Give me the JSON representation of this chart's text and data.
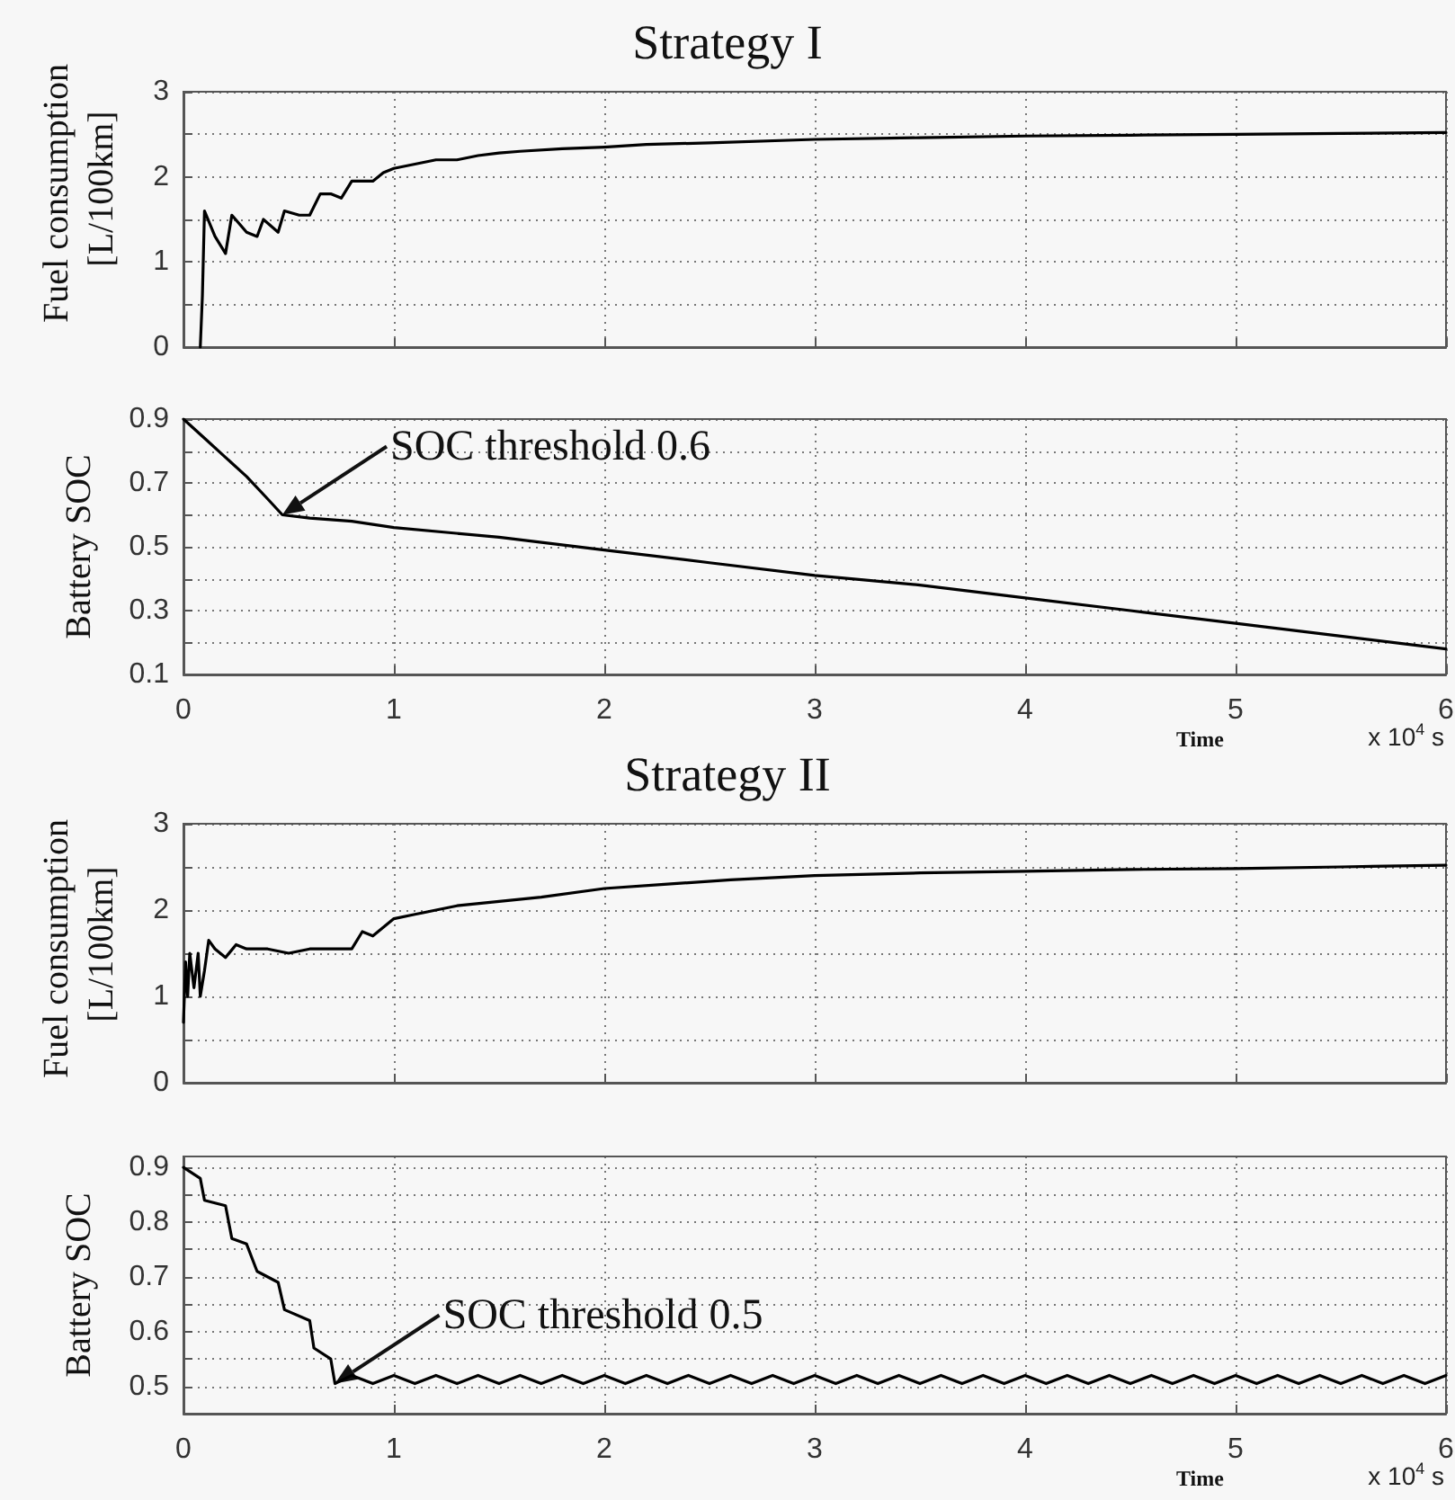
{
  "chart_data": [
    {
      "type": "line",
      "title": "Strategy I",
      "ylabel": "Fuel consumption [L/100km]",
      "xlim": [
        0,
        6
      ],
      "xticks": [
        0,
        1,
        2,
        3,
        4,
        5,
        6
      ],
      "ylim": [
        0,
        3
      ],
      "yticks": [
        0,
        {
          "value": 0.5,
          "label": null
        },
        1,
        {
          "value": 1.5,
          "label": null
        },
        2,
        {
          "value": 2.5,
          "label": null
        },
        3
      ],
      "tick_labels": "y",
      "grid": true,
      "marker": "none",
      "line_style": "solid",
      "series": [
        {
          "color": "#000000",
          "x": [
            0.08,
            0.09,
            0.1,
            0.15,
            0.2,
            0.23,
            0.3,
            0.35,
            0.38,
            0.45,
            0.48,
            0.55,
            0.6,
            0.65,
            0.7,
            0.75,
            0.8,
            0.9,
            0.95,
            1.0,
            1.1,
            1.2,
            1.3,
            1.4,
            1.5,
            1.6,
            1.8,
            2.0,
            2.2,
            2.5,
            3.0,
            3.5,
            4.0,
            4.5,
            5.0,
            5.5,
            6.0
          ],
          "values": [
            0,
            0.6,
            1.6,
            1.3,
            1.1,
            1.55,
            1.35,
            1.3,
            1.5,
            1.35,
            1.6,
            1.55,
            1.55,
            1.8,
            1.8,
            1.75,
            1.95,
            1.95,
            2.05,
            2.1,
            2.15,
            2.2,
            2.2,
            2.25,
            2.28,
            2.3,
            2.33,
            2.35,
            2.38,
            2.4,
            2.44,
            2.46,
            2.48,
            2.49,
            2.5,
            2.51,
            2.52
          ]
        }
      ]
    },
    {
      "type": "line",
      "ylabel": "Battery SOC",
      "xlabel": "Time",
      "xlim": [
        0,
        6
      ],
      "xticks": [
        0,
        1,
        2,
        3,
        4,
        5,
        6
      ],
      "ylim": [
        0.1,
        0.9
      ],
      "yticks": [
        0.1,
        {
          "value": 0.2,
          "label": null
        },
        0.3,
        {
          "value": 0.4,
          "label": null
        },
        0.5,
        {
          "value": 0.6,
          "label": null
        },
        0.7,
        {
          "value": 0.8,
          "label": null
        },
        0.9
      ],
      "grid": true,
      "marker": "none",
      "line_style": "solid",
      "annotations": [
        {
          "text": "SOC threshold 0.6",
          "x": 0.47,
          "y": 0.6
        },
        "x 10$^{4}$ s"
      ],
      "series": [
        {
          "color": "#000000",
          "x": [
            0,
            0.1,
            0.2,
            0.3,
            0.4,
            0.47,
            0.6,
            0.8,
            1.0,
            1.5,
            2.0,
            2.5,
            3.0,
            3.5,
            4.0,
            4.5,
            5.0,
            5.5,
            6.0
          ],
          "values": [
            0.9,
            0.84,
            0.78,
            0.72,
            0.65,
            0.6,
            0.59,
            0.58,
            0.56,
            0.53,
            0.49,
            0.45,
            0.41,
            0.38,
            0.34,
            0.3,
            0.26,
            0.22,
            0.18
          ]
        }
      ]
    },
    {
      "type": "line",
      "title": "Strategy II",
      "ylabel": "Fuel consumption [L/100km]",
      "xlim": [
        0,
        6
      ],
      "xticks": [
        0,
        1,
        2,
        3,
        4,
        5,
        6
      ],
      "ylim": [
        0,
        3
      ],
      "yticks": [
        0,
        {
          "value": 0.5,
          "label": null
        },
        1,
        {
          "value": 1.5,
          "label": null
        },
        2,
        {
          "value": 2.5,
          "label": null
        },
        3
      ],
      "tick_labels": "y",
      "grid": true,
      "marker": "none",
      "line_style": "solid",
      "series": [
        {
          "color": "#000000",
          "x": [
            0,
            0.01,
            0.02,
            0.03,
            0.05,
            0.07,
            0.08,
            0.1,
            0.12,
            0.15,
            0.2,
            0.25,
            0.3,
            0.4,
            0.5,
            0.6,
            0.7,
            0.8,
            0.85,
            0.9,
            1.0,
            1.1,
            1.2,
            1.3,
            1.5,
            1.7,
            2.0,
            2.3,
            2.6,
            3.0,
            3.5,
            4.0,
            4.5,
            5.0,
            5.5,
            6.0
          ],
          "values": [
            0.7,
            1.4,
            1.0,
            1.5,
            1.1,
            1.5,
            1.0,
            1.3,
            1.65,
            1.55,
            1.45,
            1.6,
            1.55,
            1.55,
            1.5,
            1.55,
            1.55,
            1.55,
            1.75,
            1.7,
            1.9,
            1.95,
            2.0,
            2.05,
            2.1,
            2.15,
            2.25,
            2.3,
            2.35,
            2.4,
            2.43,
            2.45,
            2.47,
            2.48,
            2.5,
            2.52
          ]
        }
      ]
    },
    {
      "type": "line",
      "ylabel": "Battery SOC",
      "xlabel": "Time",
      "xlim": [
        0,
        6
      ],
      "xticks": [
        0,
        1,
        2,
        3,
        4,
        5,
        6
      ],
      "ylim": [
        0.45,
        0.92
      ],
      "yticks": [
        0.5,
        {
          "value": 0.55,
          "label": null
        },
        0.6,
        {
          "value": 0.65,
          "label": null
        },
        0.7,
        {
          "value": 0.75,
          "label": null
        },
        0.8,
        {
          "value": 0.85,
          "label": null
        },
        0.9
      ],
      "grid": true,
      "marker": "none",
      "line_style": "solid",
      "annotations": [
        {
          "text": "SOC threshold 0.5",
          "x": 0.72,
          "y": 0.505
        },
        "x 10$^{4}$ s"
      ],
      "series": [
        {
          "color": "#000000",
          "x": [
            0,
            0.08,
            0.1,
            0.2,
            0.23,
            0.3,
            0.35,
            0.45,
            0.48,
            0.6,
            0.62,
            0.7,
            0.72,
            0.8,
            0.9,
            1.0,
            1.1,
            1.2,
            1.3,
            1.4,
            1.5,
            1.6,
            1.7,
            1.8,
            1.9,
            2.0,
            2.1,
            2.2,
            2.3,
            2.4,
            2.5,
            2.6,
            2.7,
            2.8,
            2.9,
            3.0,
            3.1,
            3.2,
            3.3,
            3.4,
            3.5,
            3.6,
            3.7,
            3.8,
            3.9,
            4.0,
            4.1,
            4.2,
            4.3,
            4.4,
            4.5,
            4.6,
            4.7,
            4.8,
            4.9,
            5.0,
            5.1,
            5.2,
            5.3,
            5.4,
            5.5,
            5.6,
            5.7,
            5.8,
            5.9,
            6.0
          ],
          "values": [
            0.9,
            0.88,
            0.84,
            0.83,
            0.77,
            0.76,
            0.71,
            0.69,
            0.64,
            0.62,
            0.57,
            0.55,
            0.505,
            0.52,
            0.505,
            0.52,
            0.505,
            0.52,
            0.505,
            0.52,
            0.505,
            0.52,
            0.505,
            0.52,
            0.505,
            0.52,
            0.505,
            0.52,
            0.505,
            0.52,
            0.505,
            0.52,
            0.505,
            0.52,
            0.505,
            0.52,
            0.505,
            0.52,
            0.505,
            0.52,
            0.505,
            0.52,
            0.505,
            0.52,
            0.505,
            0.52,
            0.505,
            0.52,
            0.505,
            0.52,
            0.505,
            0.52,
            0.505,
            0.52,
            0.505,
            0.52,
            0.505,
            0.52,
            0.505,
            0.52,
            0.505,
            0.52,
            0.505,
            0.52,
            0.505,
            0.52
          ]
        }
      ]
    }
  ]
}
